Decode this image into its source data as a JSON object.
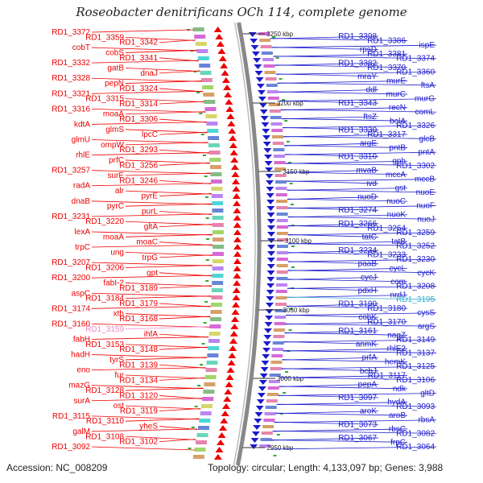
{
  "title": "Roseobacter denitrificans OCh 114, complete genome",
  "footer": {
    "accession": "Accession: NC_008209",
    "summary": "Topology: circular; Length: 4,133,097 bp; Genes: 3,988"
  },
  "scale_marks": [
    "3250 kbp",
    "3200 kbp",
    "3150 kbp",
    "3100 kbp",
    "3050 kbp",
    "3000 kbp",
    "2950 kbp"
  ],
  "colors": {
    "left_strand": "#ee0000",
    "right_strand": "#1a1acc",
    "highlight_left": "#ee88cc",
    "highlight_right": "#33aacc",
    "backbone": "#888888"
  },
  "left_labels": [
    "RD1_3372",
    "RD1_3359",
    "RD1_3342",
    "cobT",
    "cobS",
    "RD1_3341",
    "RD1_3332",
    "gatB",
    "dnaJ",
    "RD1_3328",
    "pepN",
    "RD1_3324",
    "RD1_3321",
    "RD1_3315",
    "RD1_3314",
    "RD1_3316",
    "moaA",
    "RD1_3306",
    "kdtA",
    "glmS",
    "lpcC",
    "glmU",
    "ompW",
    "RD1_3293",
    "rhlE",
    "prfC",
    "RD1_3256",
    "RD1_3257",
    "surE",
    "RD1_3246",
    "radA",
    "alr",
    "pyrE",
    "dnaB",
    "pyrC",
    "purL",
    "RD1_3231",
    "RD1_3220",
    "gltA",
    "lexA",
    "moaA",
    "moaC",
    "trpC",
    "ung",
    "trpG",
    "RD1_3207",
    "RD1_3206",
    "gpt",
    "RD1_3200",
    "fabI-2",
    "RD1_3189",
    "aspC",
    "RD1_3184",
    "RD1_3179",
    "RD1_3174",
    "xth",
    "RD1_3168",
    "RD1_3160",
    "RD1_3159",
    "ihfA",
    "fabH",
    "RD1_3153",
    "RD1_3148",
    "hadH",
    "tyrS",
    "RD1_3139",
    "eno",
    "fur",
    "RD1_3134",
    "mazG",
    "RD1_3128",
    "RD1_3120",
    "surA",
    "ost",
    "RD1_3119",
    "RD1_3115",
    "RD1_3110",
    "yheS",
    "galM",
    "RD1_3108",
    "RD1_3102",
    "RD1_3092"
  ],
  "right_labels": [
    "RD1_3398",
    "RD1_3386",
    "ispE",
    "rpsD",
    "RD1_3381",
    "RD1_3374",
    "RD1_3382",
    "RD1_3370",
    "RD1_3360",
    "mraY",
    "murE",
    "ftsA",
    "ddl",
    "murC",
    "murG",
    "RD1_3343",
    "recN",
    "comL",
    "ftsZ",
    "bolA",
    "RD1_3326",
    "RD1_3330",
    "RD1_3317",
    "glcB",
    "argE",
    "pntB",
    "pntA",
    "RD1_3310",
    "gph",
    "RD1_3302",
    "mvaB",
    "mccA",
    "mccB",
    "ivd",
    "gst",
    "nuoE",
    "nuoD",
    "nuoC",
    "nuoF",
    "RD1_3274",
    "nuoK",
    "nuoJ",
    "RD1_3266",
    "RD1_3264",
    "RD1_3259",
    "tatC",
    "tatB",
    "RD1_3252",
    "RD1_3234",
    "RD1_3233",
    "RD1_3230",
    "paaB",
    "cycL",
    "cycK",
    "cycJ",
    "com",
    "RD1_3208",
    "pdxH",
    "nrdJ",
    "RD1_3195",
    "RD1_3190",
    "RD1_3180",
    "cysS",
    "cobK",
    "RD1_3170",
    "argS",
    "RD1_3161",
    "nagZ",
    "RD1_3149",
    "anmK",
    "rhlE2",
    "RD1_3137",
    "prfA",
    "hemK",
    "RD1_3125",
    "bcbJ",
    "RD1_3117",
    "RD1_3106",
    "pepA",
    "ndk",
    "gltD",
    "RD1_3097",
    "hydA",
    "RD1_3093",
    "aroK",
    "aroB",
    "rbsA",
    "RD1_3073",
    "rbsC",
    "RD1_3082",
    "RD1_3067",
    "frpC",
    "RD1_3064"
  ]
}
